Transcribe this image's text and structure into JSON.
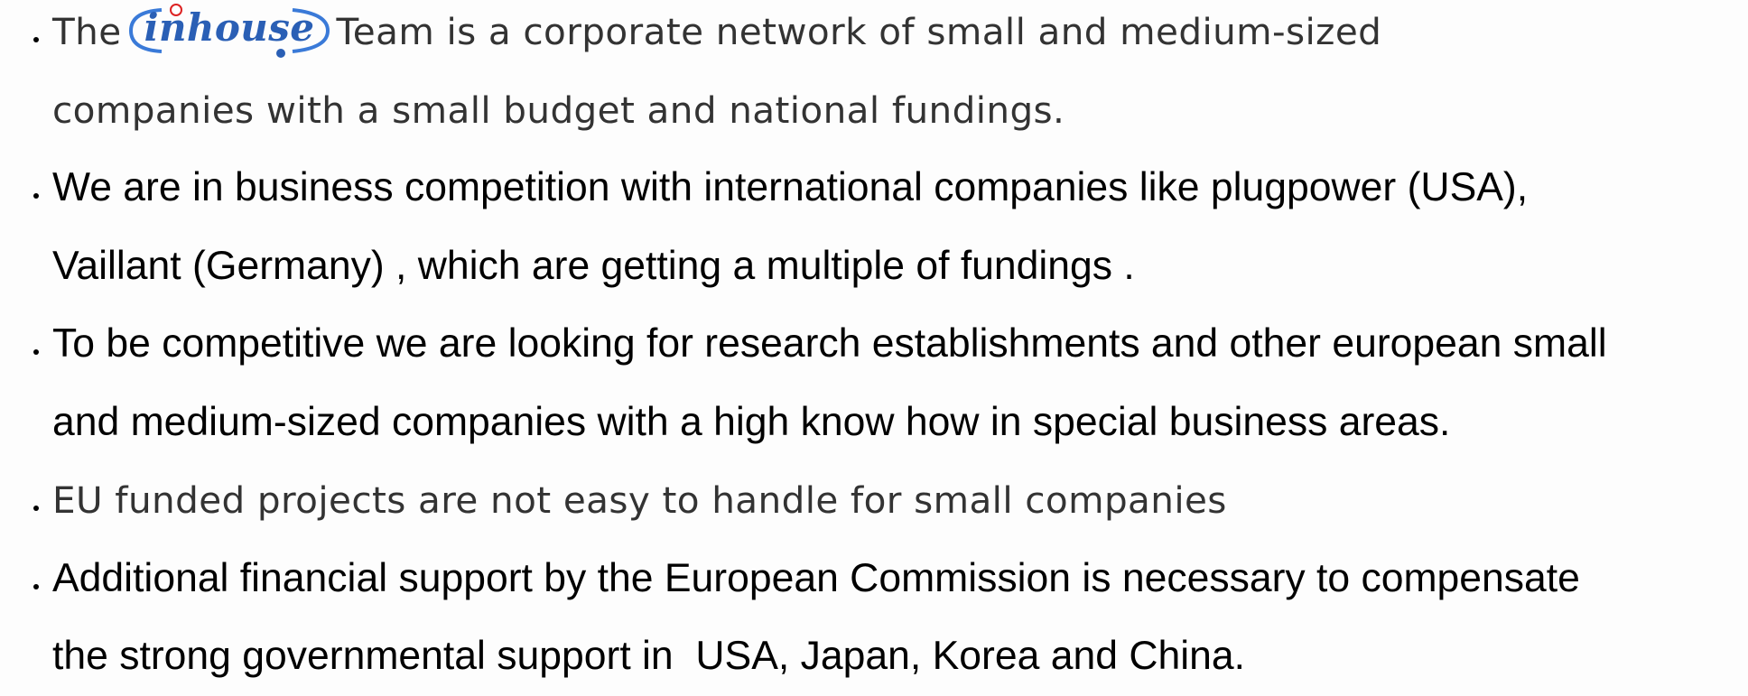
{
  "bullets": [
    {
      "lead": {
        "before": "The",
        "logo": "inhouse",
        "after": "Team is a corporate network of small and medium-sized"
      },
      "lines": [
        "companies with a small budget and national fundings."
      ]
    },
    {
      "lines": [
        "We are in business competition with international companies like plugpower (USA),",
        "Vaillant (Germany) , which are getting a multiple of fundings ."
      ]
    },
    {
      "lines": [
        "To be competitive we are looking for research establishments and other european small",
        "and medium-sized companies with a high know how in special business areas."
      ]
    },
    {
      "lines": [
        "EU funded projects are not easy to handle for small companies"
      ]
    },
    {
      "lines": [
        "Additional financial support by the European Commission is necessary to compensate",
        "the strong governmental support in  USA, Japan, Korea and China."
      ]
    }
  ]
}
